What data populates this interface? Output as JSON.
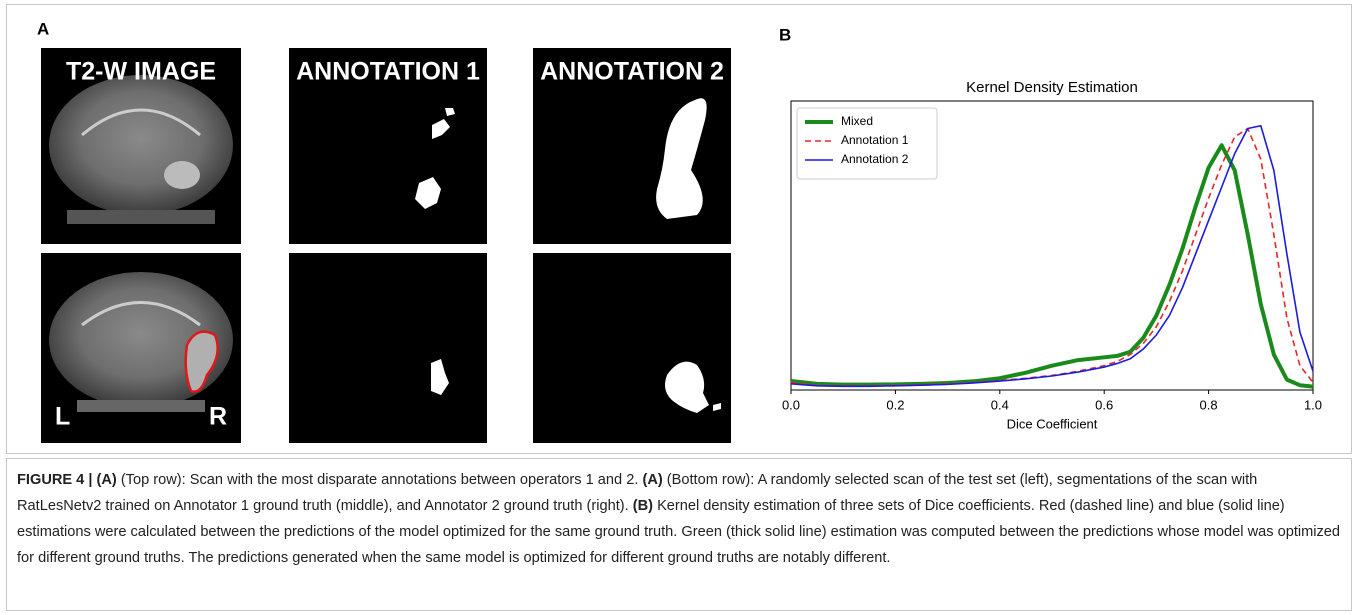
{
  "panel_a": {
    "label": "A",
    "column_titles": [
      "T2-W IMAGE",
      "ANNOTATION 1",
      "ANNOTATION 2"
    ],
    "side_labels": [
      "L",
      "R"
    ]
  },
  "chart_data": {
    "type": "line",
    "panel_label": "B",
    "title": "Kernel Density Estimation",
    "x_label": "Dice Coefficient",
    "x": [
      0,
      0.05,
      0.1,
      0.15,
      0.2,
      0.25,
      0.3,
      0.35,
      0.4,
      0.45,
      0.5,
      0.55,
      0.6,
      0.625,
      0.65,
      0.675,
      0.7,
      0.725,
      0.75,
      0.775,
      0.8,
      0.825,
      0.85,
      0.875,
      0.9,
      0.925,
      0.95,
      0.975,
      1.0
    ],
    "xlim": [
      0,
      1
    ],
    "xticks": [
      {
        "value": 0,
        "label": "0.0"
      },
      {
        "value": 0.2,
        "label": "0.2"
      },
      {
        "value": 0.4,
        "label": "0.4"
      },
      {
        "value": 0.6,
        "label": "0.6"
      },
      {
        "value": 0.8,
        "label": "0.8"
      },
      {
        "value": 1,
        "label": "1.0"
      }
    ],
    "ylim": [
      0,
      1
    ],
    "legend": "upper left",
    "series": [
      {
        "name": "Mixed",
        "color": "#1a8a1a",
        "linewidth": 4,
        "linestyle": "solid",
        "values": [
          0.025,
          0.015,
          0.012,
          0.012,
          0.013,
          0.015,
          0.018,
          0.024,
          0.035,
          0.055,
          0.08,
          0.1,
          0.11,
          0.115,
          0.13,
          0.18,
          0.26,
          0.37,
          0.5,
          0.65,
          0.79,
          0.87,
          0.78,
          0.55,
          0.3,
          0.12,
          0.03,
          0.01,
          0.005
        ]
      },
      {
        "name": "Annotation 1",
        "color": "#e8262a",
        "linewidth": 1.6,
        "linestyle": "dashed",
        "values": [
          0.02,
          0.01,
          0.008,
          0.008,
          0.01,
          0.012,
          0.015,
          0.02,
          0.027,
          0.035,
          0.045,
          0.06,
          0.08,
          0.095,
          0.12,
          0.16,
          0.22,
          0.31,
          0.42,
          0.55,
          0.68,
          0.8,
          0.9,
          0.93,
          0.82,
          0.55,
          0.25,
          0.08,
          0.02
        ]
      },
      {
        "name": "Annotation 2",
        "color": "#1c1cdc",
        "linewidth": 1.6,
        "linestyle": "solid",
        "values": [
          0.015,
          0.008,
          0.006,
          0.006,
          0.008,
          0.01,
          0.013,
          0.018,
          0.025,
          0.033,
          0.043,
          0.057,
          0.075,
          0.088,
          0.105,
          0.14,
          0.19,
          0.26,
          0.36,
          0.48,
          0.6,
          0.72,
          0.84,
          0.93,
          0.94,
          0.78,
          0.48,
          0.2,
          0.06
        ]
      }
    ]
  },
  "caption": [
    "FIGURE 4 | (A)",
    " (Top row): Scan with the most disparate annotations between operators 1 and 2. ",
    "(A)",
    " (Bottom row): A randomly selected scan of the test set (left), segmentations of the scan with RatLesNetv2 trained on Annotator 1 ground truth (middle), and Annotator 2 ground truth (right). ",
    "(B)",
    " Kernel density estimation of three sets of Dice coefficients. Red (dashed line) and blue (solid line) estimations were calculated between the predictions of the model optimized for the same ground truth. Green (thick solid line) estimation was computed between the predictions whose model was optimized for different ground truths. The predictions generated when the same model is optimized for different ground truths are notably different."
  ]
}
